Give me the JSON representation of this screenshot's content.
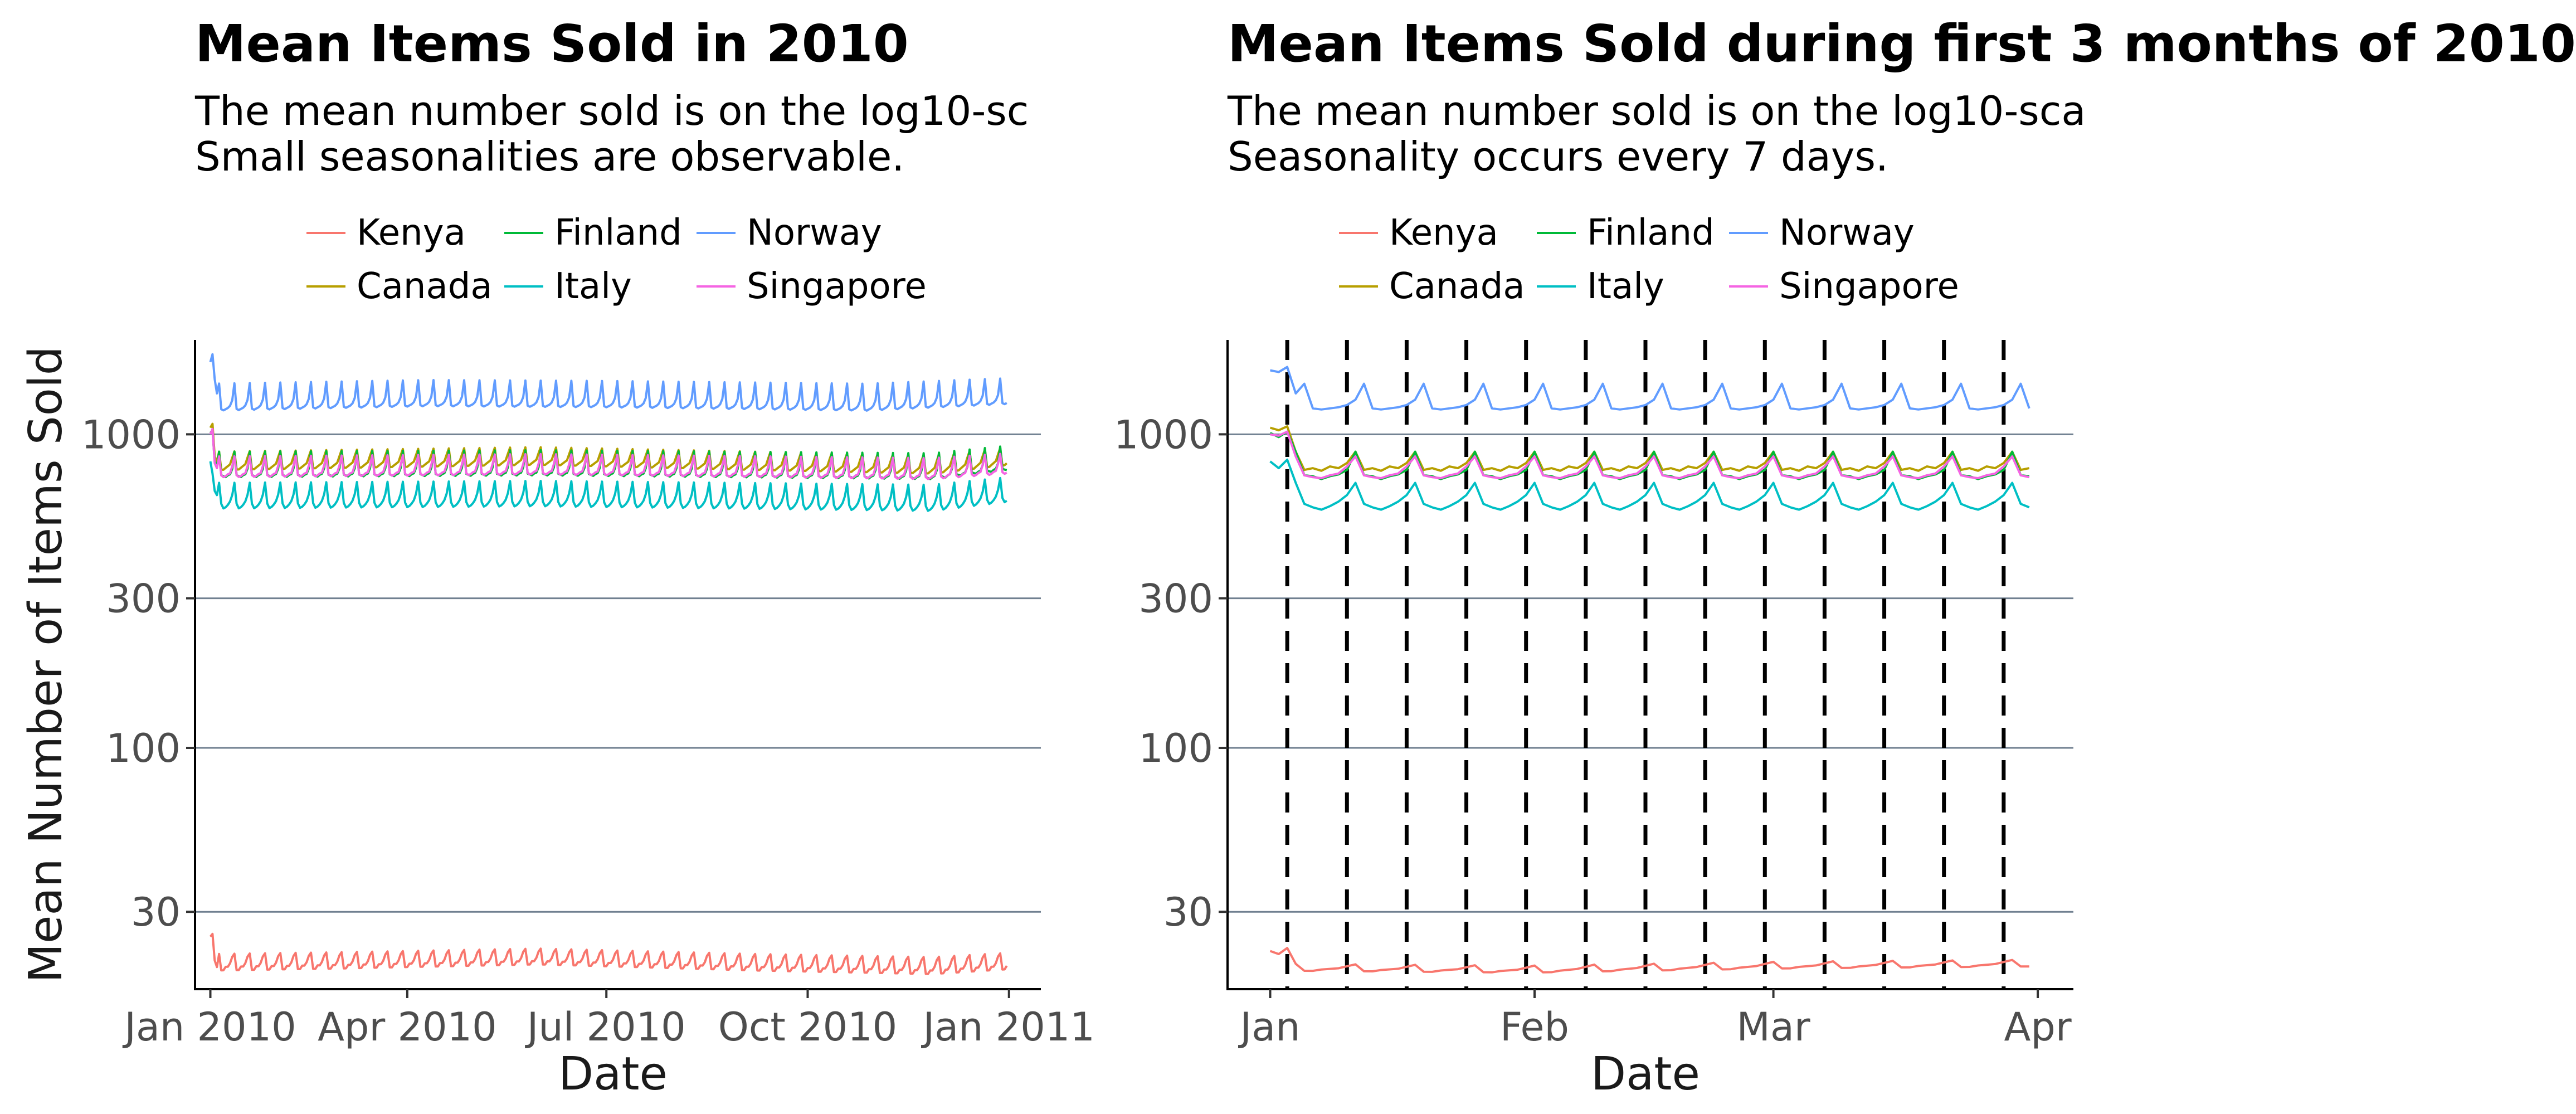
{
  "chart_data": [
    {
      "type": "line",
      "title": "Mean Items Sold in 2010",
      "subtitle_lines": [
        "The mean number sold is on the log10-sc",
        "Small seasonalities are observable."
      ],
      "xlabel": "Date",
      "ylabel": "Mean Number of Items Sold",
      "y_scale": "log10",
      "y_ticks": [
        30,
        100,
        300,
        1000
      ],
      "y_tick_labels": [
        "30",
        "100",
        "300",
        "1000"
      ],
      "ylim": [
        17,
        2000
      ],
      "x_ticks": [
        "2010-01-01",
        "2010-04-01",
        "2010-07-01",
        "2010-10-01",
        "2011-01-01"
      ],
      "x_tick_labels": [
        "Jan 2010",
        "Apr 2010",
        "Jul 2010",
        "Oct 2010",
        "Jan 2011"
      ],
      "x_range": [
        "2009-12-25",
        "2011-01-11"
      ],
      "grid": "horizontal major lines",
      "legend_position": "top",
      "vlines": [],
      "series": [
        {
          "name": "Kenya",
          "color": "#F8766D",
          "start": "2010-01-01",
          "end": "2010-12-31",
          "weekly_pattern": [
            22,
            19.5,
            19.5,
            20,
            20,
            20.5,
            21.5
          ],
          "drift": [
            [
              0,
              0
            ],
            [
              60,
              0.3
            ],
            [
              150,
              0.9
            ],
            [
              250,
              0
            ],
            [
              330,
              -0.5
            ],
            [
              365,
              0.2
            ]
          ],
          "first_values": [
            25,
            25.5,
            21,
            20
          ]
        },
        {
          "name": "Canada",
          "color": "#B79F00",
          "start": "2010-01-01",
          "end": "2010-12-31",
          "weekly_pattern": [
            880,
            770,
            770,
            780,
            790,
            800,
            840
          ],
          "drift": [
            [
              0,
              0
            ],
            [
              150,
              30
            ],
            [
              250,
              0
            ],
            [
              330,
              -20
            ],
            [
              365,
              30
            ]
          ],
          "first_values": [
            1050,
            1080,
            850,
            820
          ]
        },
        {
          "name": "Finland",
          "color": "#00BA38",
          "start": "2010-01-01",
          "end": "2010-12-31",
          "weekly_pattern": [
            880,
            740,
            735,
            730,
            740,
            745,
            775
          ],
          "drift": [
            [
              0,
              0
            ],
            [
              150,
              10
            ],
            [
              330,
              -10
            ],
            [
              365,
              40
            ]
          ],
          "first_values": [
            1010,
            1030,
            820,
            790
          ]
        },
        {
          "name": "Italy",
          "color": "#00BFC4",
          "start": "2010-01-01",
          "end": "2010-12-31",
          "weekly_pattern": [
            700,
            600,
            580,
            585,
            595,
            610,
            640
          ],
          "drift": [
            [
              0,
              0
            ],
            [
              150,
              10
            ],
            [
              330,
              -10
            ],
            [
              365,
              30
            ]
          ],
          "first_values": [
            820,
            750,
            660,
            640
          ]
        },
        {
          "name": "Norway",
          "color": "#619CFF",
          "start": "2010-01-01",
          "end": "2010-12-31",
          "weekly_pattern": [
            1450,
            1200,
            1190,
            1200,
            1210,
            1230,
            1280
          ],
          "drift": [
            [
              0,
              0
            ],
            [
              100,
              40
            ],
            [
              180,
              30
            ],
            [
              300,
              0
            ],
            [
              365,
              60
            ]
          ],
          "first_values": [
            1700,
            1800,
            1500,
            1350
          ]
        },
        {
          "name": "Singapore",
          "color": "#F564E3",
          "start": "2010-01-01",
          "end": "2010-12-31",
          "weekly_pattern": [
            850,
            740,
            730,
            735,
            745,
            750,
            790
          ],
          "drift": [
            [
              0,
              0
            ],
            [
              150,
              15
            ],
            [
              330,
              -10
            ],
            [
              365,
              20
            ]
          ],
          "first_values": [
            1000,
            1040,
            810,
            780
          ]
        }
      ]
    },
    {
      "type": "line",
      "title": "Mean Items Sold during first 3 months of 2010",
      "subtitle_lines": [
        "The mean number sold is on the log10-sca",
        "Seasonality occurs every 7 days."
      ],
      "xlabel": "Date",
      "ylabel": "",
      "y_scale": "log10",
      "y_ticks": [
        30,
        100,
        300,
        1000
      ],
      "y_tick_labels": [
        "30",
        "100",
        "300",
        "1000"
      ],
      "ylim": [
        17,
        2000
      ],
      "x_ticks": [
        "2010-01-01",
        "2010-02-01",
        "2010-03-01",
        "2010-04-01"
      ],
      "x_tick_labels": [
        "Jan",
        "Feb",
        "Mar",
        "Apr"
      ],
      "x_range": [
        "2009-12-27",
        "2010-04-04"
      ],
      "grid": "horizontal major lines",
      "legend_position": "top",
      "vlines": [
        "2010-01-03",
        "2010-01-10",
        "2010-01-17",
        "2010-01-24",
        "2010-01-31",
        "2010-02-07",
        "2010-02-14",
        "2010-02-21",
        "2010-02-28",
        "2010-03-07",
        "2010-03-14",
        "2010-03-21",
        "2010-03-28"
      ],
      "vline_style": "dashed black",
      "series": [
        {
          "name": "Kenya",
          "color": "#F8766D",
          "start": "2010-01-01",
          "end": "2010-03-31",
          "weekly_pattern": [
            20.5,
            19.5,
            19.5,
            19.7,
            19.8,
            19.9,
            20.2
          ],
          "drift": [
            [
              0,
              0
            ],
            [
              30,
              -0.3
            ],
            [
              60,
              0.3
            ],
            [
              90,
              0.6
            ]
          ],
          "first_values": [
            22.5,
            22,
            23
          ]
        },
        {
          "name": "Canada",
          "color": "#B79F00",
          "start": "2010-01-01",
          "end": "2010-03-31",
          "weekly_pattern": [
            880,
            770,
            780,
            765,
            790,
            780,
            810
          ],
          "drift": [
            [
              0,
              0
            ],
            [
              90,
              0
            ]
          ],
          "first_values": [
            1050,
            1030,
            1060
          ]
        },
        {
          "name": "Finland",
          "color": "#00BA38",
          "start": "2010-01-01",
          "end": "2010-03-31",
          "weekly_pattern": [
            880,
            740,
            735,
            720,
            735,
            745,
            770
          ],
          "drift": [
            [
              0,
              0
            ],
            [
              90,
              0
            ]
          ],
          "first_values": [
            1010,
            980,
            1020
          ]
        },
        {
          "name": "Italy",
          "color": "#00BFC4",
          "start": "2010-01-01",
          "end": "2010-03-31",
          "weekly_pattern": [
            700,
            600,
            585,
            575,
            590,
            610,
            640
          ],
          "drift": [
            [
              0,
              0
            ],
            [
              90,
              0
            ]
          ],
          "first_values": [
            820,
            780,
            830
          ]
        },
        {
          "name": "Norway",
          "color": "#619CFF",
          "start": "2010-01-01",
          "end": "2010-03-31",
          "weekly_pattern": [
            1450,
            1210,
            1200,
            1210,
            1220,
            1240,
            1290
          ],
          "drift": [
            [
              0,
              0
            ],
            [
              90,
              0
            ]
          ],
          "first_values": [
            1600,
            1580,
            1640,
            1350
          ]
        },
        {
          "name": "Singapore",
          "color": "#F564E3",
          "start": "2010-01-01",
          "end": "2010-03-31",
          "weekly_pattern": [
            850,
            740,
            730,
            725,
            740,
            750,
            790
          ],
          "drift": [
            [
              0,
              0
            ],
            [
              90,
              0
            ]
          ],
          "first_values": [
            1000,
            990,
            1020
          ]
        }
      ]
    }
  ]
}
